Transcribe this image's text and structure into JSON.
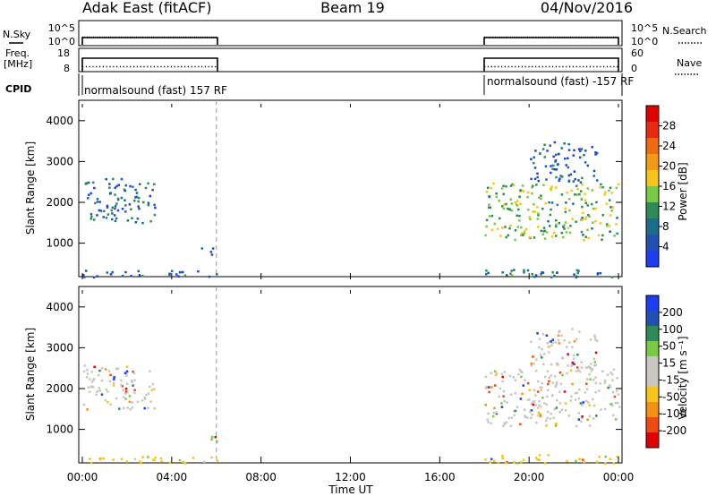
{
  "header": {
    "station": "Adak East (fitACF)",
    "beam": "Beam 19",
    "date": "04/Nov/2016"
  },
  "status_panels": {
    "nsky_label": "N.Sky",
    "nsearch_label": "N.Search",
    "freq_label_line1": "Freq.",
    "freq_label_line2": "[MHz]",
    "nave_label": "Nave",
    "cpid_label": "CPID",
    "noise_ticks": [
      "10^5",
      "10^0"
    ],
    "noise_ticks_right": [
      "10^5",
      "10^0"
    ],
    "freq_ticks": [
      "18",
      "8"
    ],
    "nave_ticks": [
      "60",
      "0"
    ],
    "cpid_left_text": "normalsound (fast) 157 RF",
    "cpid_right_text": "normalsound (fast) -157 RF"
  },
  "colors": {
    "power_scale": [
      "#1e3cf0",
      "#2050b4",
      "#1a6e8c",
      "#2e8b57",
      "#7ac943",
      "#f5c518",
      "#f59a14",
      "#ef6b0f",
      "#e82a12",
      "#e10000"
    ],
    "velocity_scale": [
      "#e10000",
      "#ef4a10",
      "#f59014",
      "#f5c518",
      "#c8c8c0",
      "#c8c8c0",
      "#7ac943",
      "#2e8b57",
      "#2050b4",
      "#1e3cf0"
    ]
  },
  "chart_data": [
    {
      "type": "heatmap",
      "title": "Power",
      "ylabel": "Slant Range [km]",
      "yticks": [
        "1000",
        "2000",
        "3000",
        "4000"
      ],
      "ylim": [
        180,
        4500
      ],
      "xlim": [
        0,
        24
      ],
      "colorbar_label": "Power [dB]",
      "colorbar_ticks": [
        "4",
        "8",
        "12",
        "16",
        "20",
        "24",
        "28"
      ],
      "colorbar_range": [
        0,
        32
      ],
      "scans": [
        {
          "t_start": 0.0,
          "t_end": 3.3,
          "range_min": 1500,
          "range_max": 2600,
          "value": 7
        },
        {
          "t_start": 0.0,
          "t_end": 6.0,
          "range_min": 180,
          "range_max": 350,
          "value": 6
        },
        {
          "t_start": 5.3,
          "t_end": 6.0,
          "range_min": 700,
          "range_max": 900,
          "value": 7
        },
        {
          "t_start": 18.0,
          "t_end": 24.0,
          "range_min": 1100,
          "range_max": 2500,
          "value": 14
        },
        {
          "t_start": 18.0,
          "t_end": 24.0,
          "range_min": 180,
          "range_max": 400,
          "value": 8
        },
        {
          "t_start": 20.0,
          "t_end": 23.0,
          "range_min": 2500,
          "range_max": 3500,
          "value": 6
        }
      ]
    },
    {
      "type": "heatmap",
      "title": "Velocity",
      "ylabel": "Slant Range [km]",
      "yticks": [
        "1000",
        "2000",
        "3000",
        "4000"
      ],
      "ylim": [
        180,
        4500
      ],
      "xlim": [
        0,
        24
      ],
      "colorbar_label": "Velocity [m s⁻¹]",
      "colorbar_ticks": [
        "200",
        "100",
        "50",
        "15",
        "-15",
        "-50",
        "-100",
        "-200"
      ],
      "scans": [
        {
          "t_start": 0.0,
          "t_end": 3.3,
          "range_min": 1500,
          "range_max": 2600,
          "value": 0
        },
        {
          "t_start": 0.0,
          "t_end": 6.0,
          "range_min": 180,
          "range_max": 350,
          "value": -40
        },
        {
          "t_start": 5.3,
          "t_end": 6.0,
          "range_min": 700,
          "range_max": 900,
          "value": 40
        },
        {
          "t_start": 18.0,
          "t_end": 24.0,
          "range_min": 1100,
          "range_max": 2500,
          "value": 0
        },
        {
          "t_start": 18.0,
          "t_end": 24.0,
          "range_min": 180,
          "range_max": 400,
          "value": -30
        },
        {
          "t_start": 20.0,
          "t_end": 23.0,
          "range_min": 2500,
          "range_max": 3500,
          "value": 0
        }
      ]
    }
  ],
  "x_axis": {
    "ticks": [
      "00:00",
      "04:00",
      "08:00",
      "12:00",
      "16:00",
      "20:00",
      "00:00"
    ],
    "label": "Time UT"
  },
  "marker_time": 6.0
}
